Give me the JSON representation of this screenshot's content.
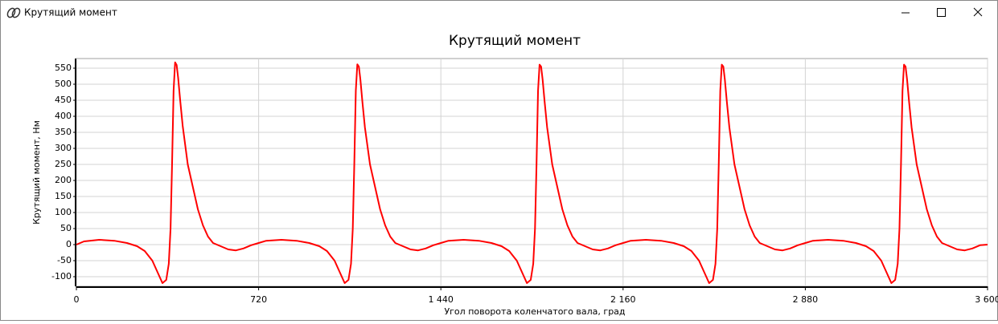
{
  "window": {
    "title": "Крутящий момент"
  },
  "chart_data": {
    "type": "line",
    "title": "Крутящий момент",
    "x_label": "Угол поворота коленчатого вала, град",
    "y_label": "Крутящий момент, Нм",
    "color": "#ff0000",
    "grid": true,
    "xlim": [
      0,
      3600
    ],
    "ylim": [
      -130,
      580
    ],
    "xticks": [
      0,
      720,
      {
        "value": 1440,
        "label": "1 440"
      },
      {
        "value": 2160,
        "label": "2 160"
      },
      {
        "value": 2880,
        "label": "2 880"
      },
      {
        "value": 3600,
        "label": "3 600"
      }
    ],
    "yticks": [
      -100,
      -50,
      0,
      50,
      100,
      150,
      200,
      250,
      300,
      350,
      400,
      450,
      500,
      550
    ],
    "x": [
      0,
      30,
      90,
      150,
      200,
      240,
      270,
      300,
      320,
      340,
      355,
      365,
      372,
      378,
      384,
      390,
      396,
      402,
      410,
      420,
      440,
      460,
      480,
      500,
      520,
      540,
      570,
      600,
      630,
      660,
      690,
      720,
      750,
      810,
      870,
      920,
      960,
      990,
      1020,
      1040,
      1060,
      1075,
      1085,
      1092,
      1098,
      1104,
      1110,
      1116,
      1122,
      1130,
      1140,
      1160,
      1180,
      1200,
      1220,
      1240,
      1260,
      1290,
      1320,
      1350,
      1380,
      1410,
      1440,
      1470,
      1530,
      1590,
      1640,
      1680,
      1710,
      1740,
      1760,
      1780,
      1795,
      1805,
      1812,
      1818,
      1824,
      1830,
      1836,
      1842,
      1850,
      1860,
      1880,
      1900,
      1920,
      1940,
      1960,
      1980,
      2010,
      2040,
      2070,
      2100,
      2130,
      2160,
      2190,
      2250,
      2310,
      2360,
      2400,
      2430,
      2460,
      2480,
      2500,
      2515,
      2525,
      2532,
      2538,
      2544,
      2550,
      2556,
      2562,
      2570,
      2580,
      2600,
      2620,
      2640,
      2660,
      2680,
      2700,
      2730,
      2760,
      2790,
      2820,
      2850,
      2880,
      2910,
      2970,
      3030,
      3080,
      3120,
      3150,
      3180,
      3200,
      3220,
      3235,
      3245,
      3252,
      3258,
      3264,
      3270,
      3276,
      3282,
      3290,
      3300,
      3320,
      3340,
      3360,
      3380,
      3400,
      3420,
      3450,
      3480,
      3510,
      3540,
      3570,
      3600
    ],
    "values": [
      0,
      10,
      15,
      12,
      5,
      -5,
      -20,
      -50,
      -85,
      -120,
      -110,
      -60,
      50,
      250,
      480,
      568,
      560,
      520,
      450,
      370,
      250,
      180,
      110,
      60,
      25,
      5,
      -5,
      -15,
      -18,
      -12,
      -2,
      5,
      12,
      15,
      12,
      5,
      -5,
      -20,
      -50,
      -85,
      -120,
      -110,
      -60,
      50,
      250,
      480,
      562,
      555,
      515,
      445,
      365,
      250,
      180,
      110,
      60,
      25,
      5,
      -5,
      -15,
      -18,
      -12,
      -2,
      5,
      12,
      15,
      12,
      5,
      -5,
      -20,
      -50,
      -85,
      -120,
      -110,
      -60,
      50,
      250,
      480,
      561,
      555,
      515,
      445,
      365,
      250,
      180,
      110,
      60,
      25,
      5,
      -5,
      -15,
      -18,
      -12,
      -2,
      5,
      12,
      15,
      12,
      5,
      -5,
      -20,
      -50,
      -85,
      -120,
      -110,
      -60,
      50,
      250,
      480,
      561,
      555,
      515,
      445,
      365,
      250,
      180,
      110,
      60,
      25,
      5,
      -5,
      -15,
      -18,
      -12,
      -2,
      5,
      12,
      15,
      12,
      5,
      -5,
      -20,
      -50,
      -85,
      -120,
      -110,
      -60,
      50,
      250,
      480,
      561,
      555,
      515,
      445,
      365,
      250,
      180,
      110,
      60,
      25,
      5,
      -5,
      -15,
      -18,
      -12,
      -2,
      0
    ]
  }
}
